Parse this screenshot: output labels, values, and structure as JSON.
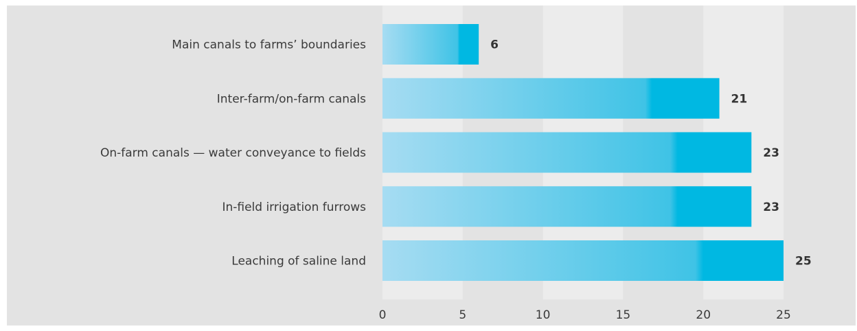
{
  "chart_data": {
    "type": "bar",
    "orientation": "horizontal",
    "categories": [
      "Main canals to farms’ boundaries",
      "Inter-farm/on-farm canals",
      "On-farm canals — water  conveyance to fields",
      "In-field irrigation furrows",
      "Leaching of saline land"
    ],
    "values": [
      6,
      21,
      23,
      23,
      25
    ],
    "xlim": [
      0,
      25
    ],
    "xticks": [
      0,
      5,
      10,
      15,
      20,
      25
    ],
    "title": "",
    "xlabel": "",
    "ylabel": "",
    "grid": "alternating vertical bands",
    "legend": "none",
    "colors": {
      "panel_background": "#e3e3e3",
      "band_light": "#ececec",
      "bar_start": "#a6dcf2",
      "bar_end": "#00b8e2"
    }
  }
}
